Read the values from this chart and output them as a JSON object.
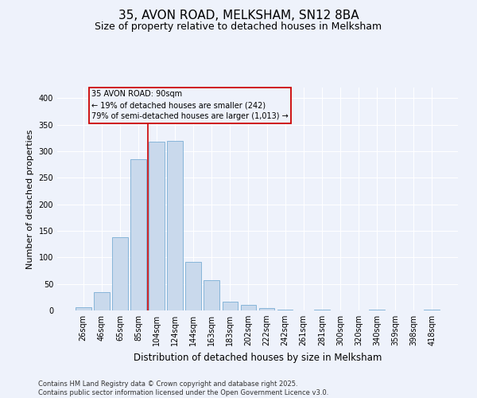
{
  "title": "35, AVON ROAD, MELKSHAM, SN12 8BA",
  "subtitle": "Size of property relative to detached houses in Melksham",
  "xlabel": "Distribution of detached houses by size in Melksham",
  "ylabel": "Number of detached properties",
  "categories": [
    "26sqm",
    "46sqm",
    "65sqm",
    "85sqm",
    "104sqm",
    "124sqm",
    "144sqm",
    "163sqm",
    "183sqm",
    "202sqm",
    "222sqm",
    "242sqm",
    "261sqm",
    "281sqm",
    "300sqm",
    "320sqm",
    "340sqm",
    "359sqm",
    "398sqm",
    "418sqm"
  ],
  "values": [
    6,
    35,
    138,
    285,
    318,
    320,
    91,
    57,
    17,
    10,
    4,
    1,
    0,
    1,
    0,
    0,
    1,
    0,
    0,
    2
  ],
  "bar_color": "#c9d9ec",
  "bar_edge_color": "#7aaed4",
  "background_color": "#eef2fb",
  "grid_color": "#ffffff",
  "annotation_box_text": "35 AVON ROAD: 90sqm\n← 19% of detached houses are smaller (242)\n79% of semi-detached houses are larger (1,013) →",
  "vline_x": 3.5,
  "vline_color": "#cc0000",
  "ylim": [
    0,
    420
  ],
  "yticks": [
    0,
    50,
    100,
    150,
    200,
    250,
    300,
    350,
    400
  ],
  "footer_text": "Contains HM Land Registry data © Crown copyright and database right 2025.\nContains public sector information licensed under the Open Government Licence v3.0.",
  "title_fontsize": 11,
  "subtitle_fontsize": 9,
  "xlabel_fontsize": 8.5,
  "ylabel_fontsize": 8,
  "tick_fontsize": 7,
  "annotation_fontsize": 7,
  "footer_fontsize": 6
}
